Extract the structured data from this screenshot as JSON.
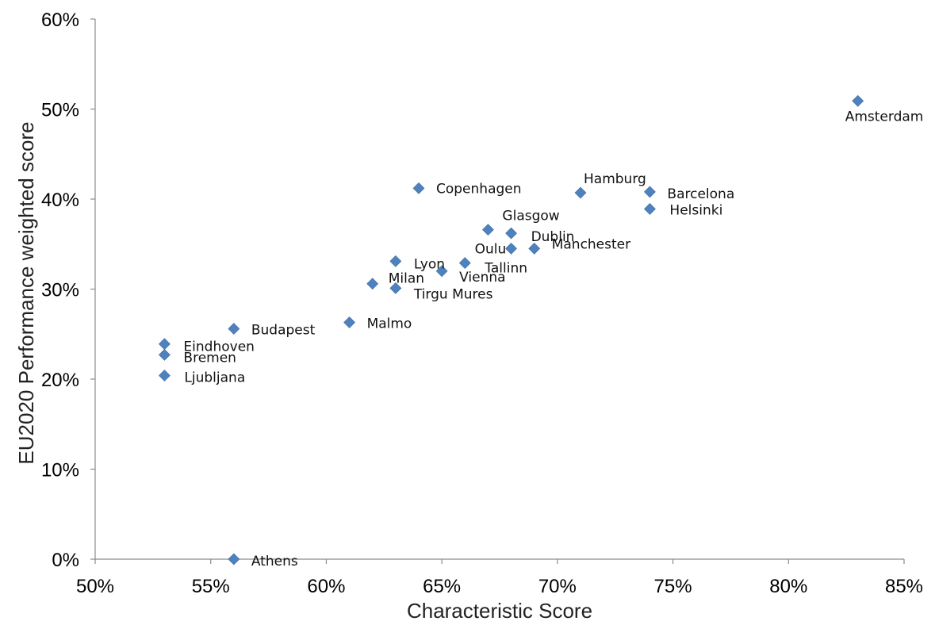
{
  "chart_data": {
    "type": "scatter",
    "title": "",
    "xlabel": "Characteristic Score",
    "ylabel": "EU2020 Performance weighted score",
    "xlim": [
      0.5,
      0.85
    ],
    "ylim": [
      0.0,
      0.6
    ],
    "x_ticks": [
      "50%",
      "55%",
      "60%",
      "65%",
      "70%",
      "75%",
      "80%",
      "85%"
    ],
    "y_ticks": [
      "0%",
      "10%",
      "20%",
      "30%",
      "40%",
      "50%",
      "60%"
    ],
    "grid": false,
    "legend": "none",
    "marker_color": "#4f81bd",
    "points": [
      {
        "label": "Amsterdam",
        "x": 0.83,
        "y": 0.509
      },
      {
        "label": "Copenhagen",
        "x": 0.64,
        "y": 0.412
      },
      {
        "label": "Hamburg",
        "x": 0.71,
        "y": 0.407
      },
      {
        "label": "Barcelona",
        "x": 0.74,
        "y": 0.408
      },
      {
        "label": "Helsinki",
        "x": 0.74,
        "y": 0.389
      },
      {
        "label": "Glasgow",
        "x": 0.67,
        "y": 0.366
      },
      {
        "label": "Dublin",
        "x": 0.68,
        "y": 0.362
      },
      {
        "label": "Oulu",
        "x": 0.68,
        "y": 0.345
      },
      {
        "label": "Manchester",
        "x": 0.69,
        "y": 0.345
      },
      {
        "label": "Lyon",
        "x": 0.63,
        "y": 0.331
      },
      {
        "label": "Tallinn",
        "x": 0.66,
        "y": 0.329
      },
      {
        "label": "Vienna",
        "x": 0.65,
        "y": 0.32
      },
      {
        "label": "Milan",
        "x": 0.62,
        "y": 0.306
      },
      {
        "label": "Tirgu  Mures",
        "x": 0.63,
        "y": 0.301
      },
      {
        "label": "Malmo",
        "x": 0.61,
        "y": 0.263
      },
      {
        "label": "Budapest",
        "x": 0.56,
        "y": 0.256
      },
      {
        "label": "Eindhoven",
        "x": 0.53,
        "y": 0.239
      },
      {
        "label": "Bremen",
        "x": 0.53,
        "y": 0.227
      },
      {
        "label": "Ljubljana",
        "x": 0.53,
        "y": 0.204
      },
      {
        "label": "Athens",
        "x": 0.56,
        "y": 0.0
      }
    ]
  }
}
